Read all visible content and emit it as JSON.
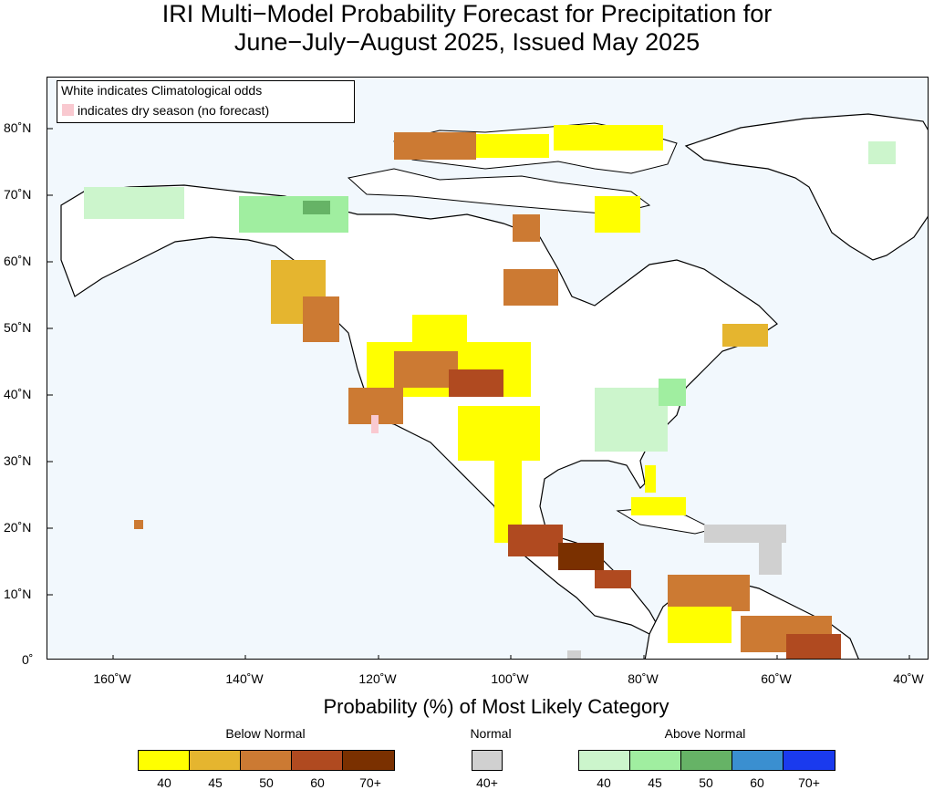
{
  "title": {
    "line1": "IRI Multi−Model Probability Forecast for Precipitation for",
    "line2": "June−July−August 2025, Issued May 2025"
  },
  "map_legend": {
    "line1": "White indicates Climatological odds",
    "line2": "indicates dry season (no forecast)"
  },
  "lat_labels": [
    "80˚N",
    "70˚N",
    "60˚N",
    "50˚N",
    "40˚N",
    "30˚N",
    "20˚N",
    "10˚N",
    "0˚"
  ],
  "lon_labels": [
    "160˚W",
    "140˚W",
    "120˚W",
    "100˚W",
    "80˚W",
    "60˚W",
    "40˚W"
  ],
  "colorbar": {
    "title": "Probability (%) of Most Likely Category",
    "below": {
      "label": "Below Normal",
      "ticks": [
        "40",
        "45",
        "50",
        "60",
        "70+"
      ],
      "colors": [
        "#ffff00",
        "#e5b52f",
        "#cc7a33",
        "#b04a20",
        "#7a3000"
      ]
    },
    "normal": {
      "label": "Normal",
      "ticks": [
        "40+"
      ],
      "colors": [
        "#d0d0d0"
      ]
    },
    "above": {
      "label": "Above Normal",
      "ticks": [
        "40",
        "45",
        "50",
        "60",
        "70+"
      ],
      "colors": [
        "#ccf5cc",
        "#a0eea0",
        "#66b366",
        "#3a8fd0",
        "#1a3aee"
      ]
    }
  },
  "colors": {
    "ocean": "#f2f8fd",
    "land": "#ffffff",
    "dry_season": "#f9c9d0"
  }
}
